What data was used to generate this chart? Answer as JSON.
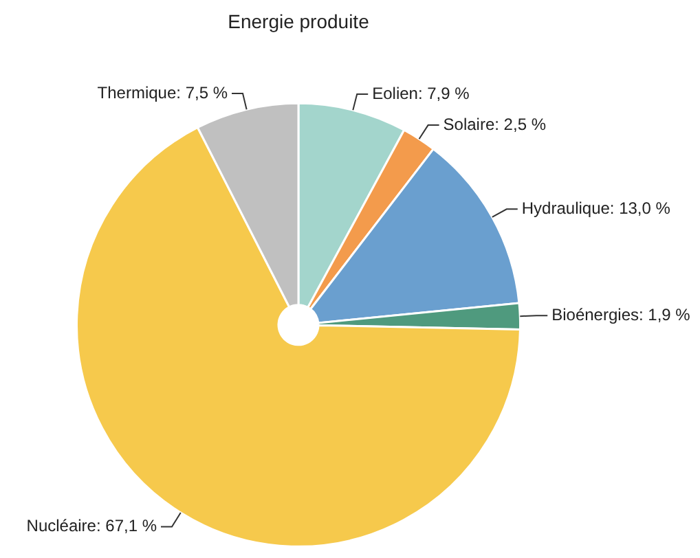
{
  "chart_data": {
    "type": "pie",
    "title": "Energie produite",
    "categories": [
      "Eolien",
      "Solaire",
      "Hydraulique",
      "Bioénergies",
      "Nucléaire",
      "Thermique"
    ],
    "values": [
      7.9,
      2.5,
      13.0,
      1.9,
      67.1,
      7.5
    ],
    "value_labels": [
      "7,9 %",
      "2,5 %",
      "13,0 %",
      "1,9 %",
      "67,1 %",
      "7,5 %"
    ],
    "colors": [
      "#a3d5cc",
      "#f39b4c",
      "#6a9fcf",
      "#4f9a7e",
      "#f6c94c",
      "#c0c0c0"
    ],
    "legend": false
  }
}
